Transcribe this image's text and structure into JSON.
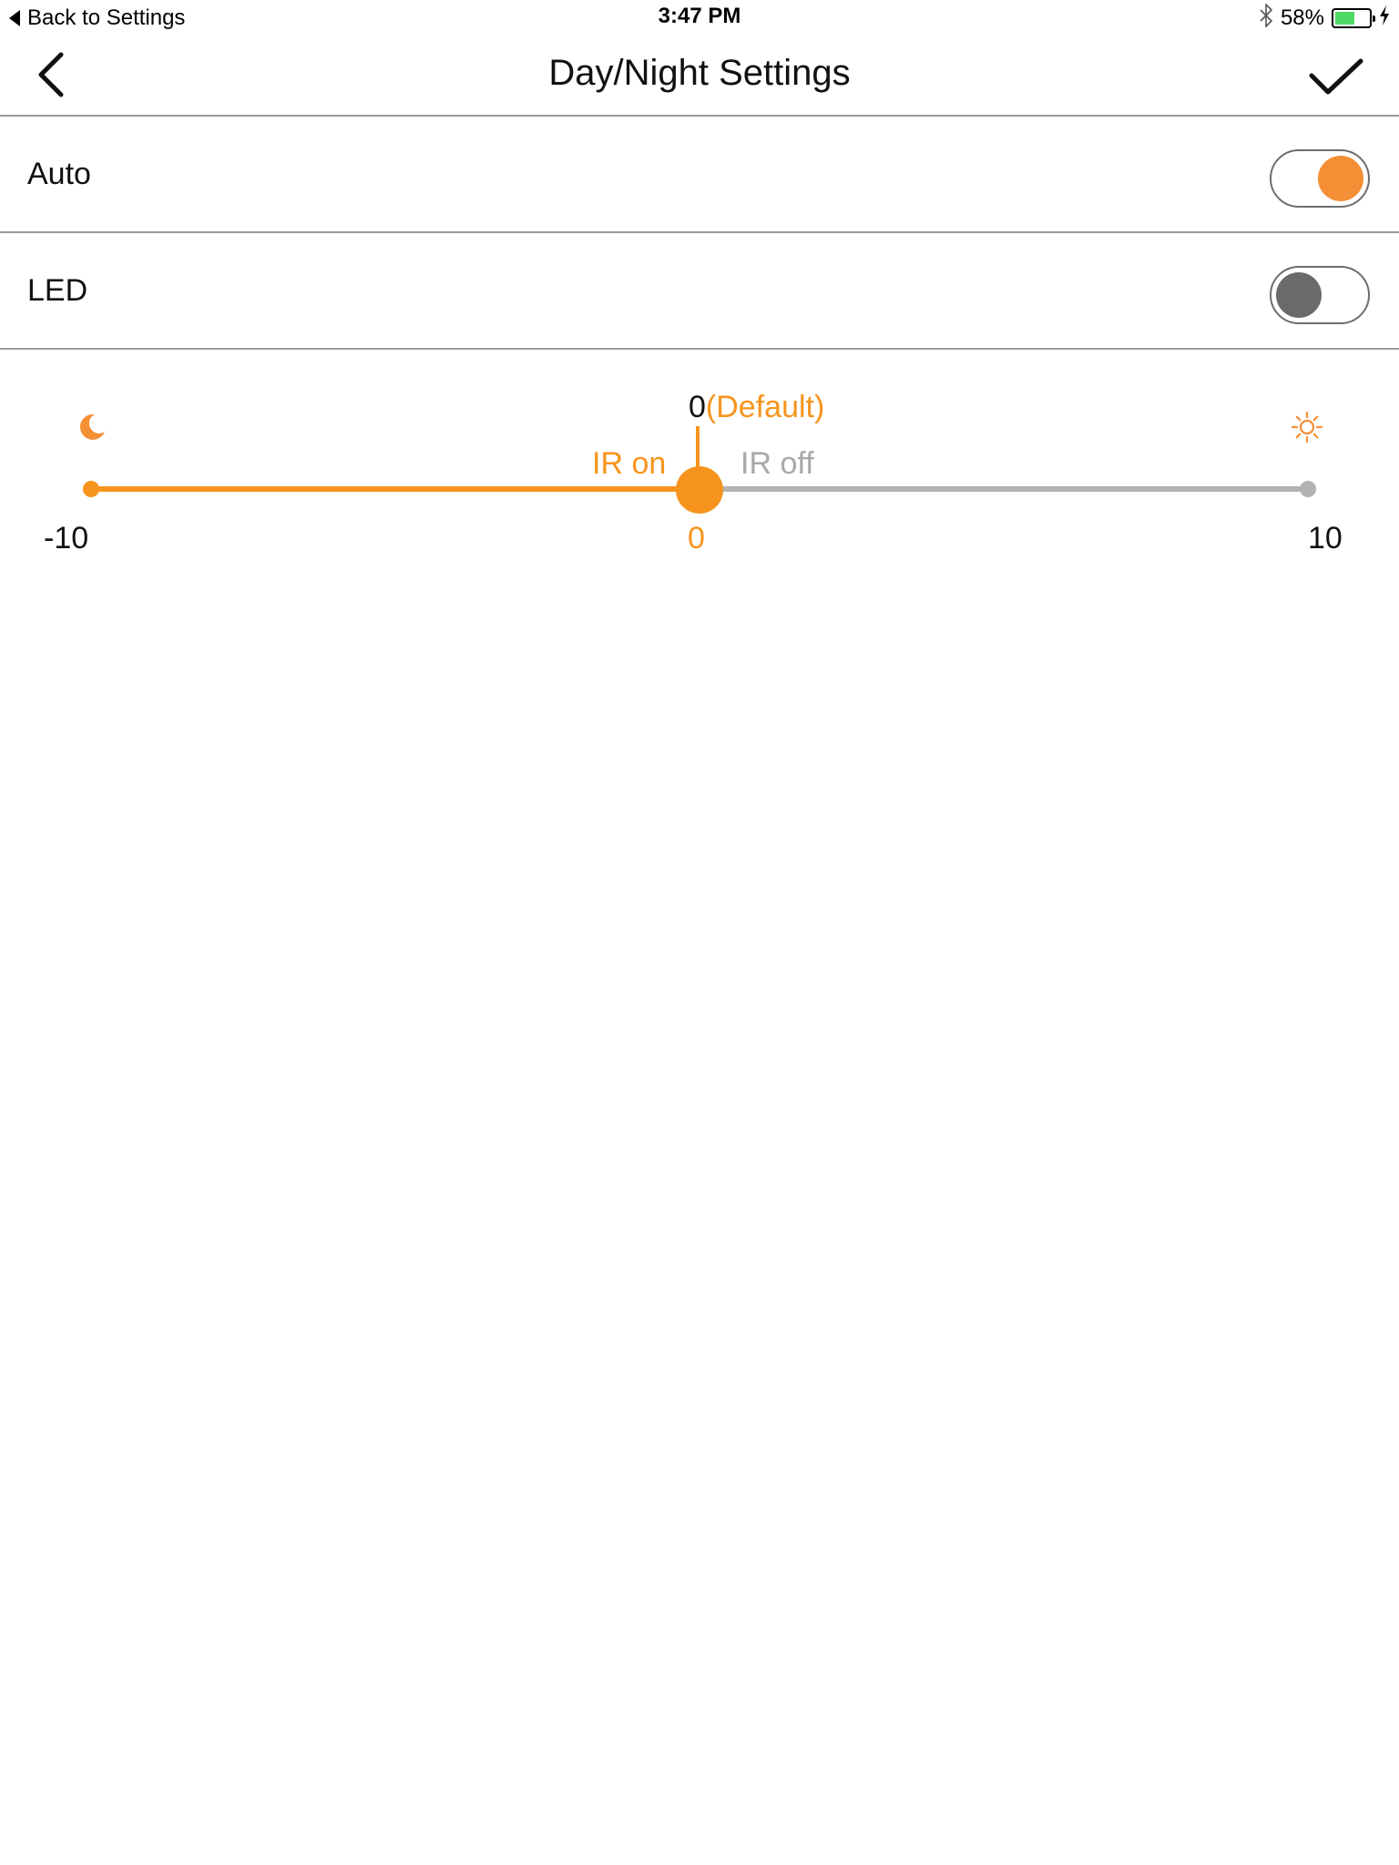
{
  "status_bar": {
    "back_label": "Back to Settings",
    "time": "3:47 PM",
    "battery_percent": "58%",
    "battery_level": 0.58
  },
  "nav": {
    "title": "Day/Night Settings",
    "back_icon": "chevron-left-icon",
    "done_icon": "checkmark-icon"
  },
  "settings": {
    "auto": {
      "label": "Auto",
      "on": true
    },
    "led": {
      "label": "LED",
      "on": false
    }
  },
  "slider": {
    "min_label": "-10",
    "max_label": "10",
    "current_label": "0",
    "default_value": "0",
    "default_tag": "(Default)",
    "ir_on_label": "IR on",
    "ir_off_label": "IR off",
    "min": -10,
    "max": 10,
    "value": 0,
    "left_icon": "moon-icon",
    "right_icon": "sun-icon"
  },
  "colors": {
    "accent": "#f7941d",
    "toggle_on_knob": "#f58f35",
    "toggle_off_knob": "#6a6a6a",
    "track_inactive": "#b3b3b3",
    "separator": "#9a9a9a"
  }
}
